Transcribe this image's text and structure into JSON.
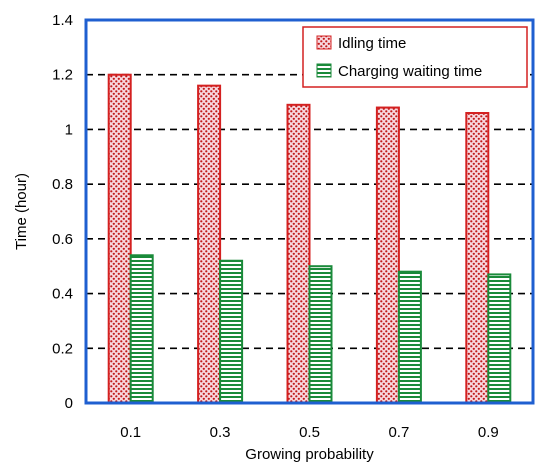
{
  "chart_data": {
    "type": "bar",
    "title": "",
    "xlabel": "Growing probability",
    "ylabel": "Time (hour)",
    "categories": [
      "0.1",
      "0.3",
      "0.5",
      "0.7",
      "0.9"
    ],
    "ylim": [
      0,
      1.4
    ],
    "yticks": [
      "0",
      "0.2",
      "0.4",
      "0.6",
      "0.8",
      "1",
      "1.2",
      "1.4"
    ],
    "series": [
      {
        "name": "Idling time",
        "values": [
          1.2,
          1.16,
          1.09,
          1.08,
          1.06
        ],
        "color": "#d42020",
        "pattern": "dots"
      },
      {
        "name": "Charging waiting time",
        "values": [
          0.54,
          0.52,
          0.5,
          0.48,
          0.47
        ],
        "color": "#1a8a3a",
        "pattern": "horizontal-stripes"
      }
    ],
    "grid": "horizontal-dashed",
    "legend_position": "top-right",
    "frame_color": "#1f5fd0"
  }
}
